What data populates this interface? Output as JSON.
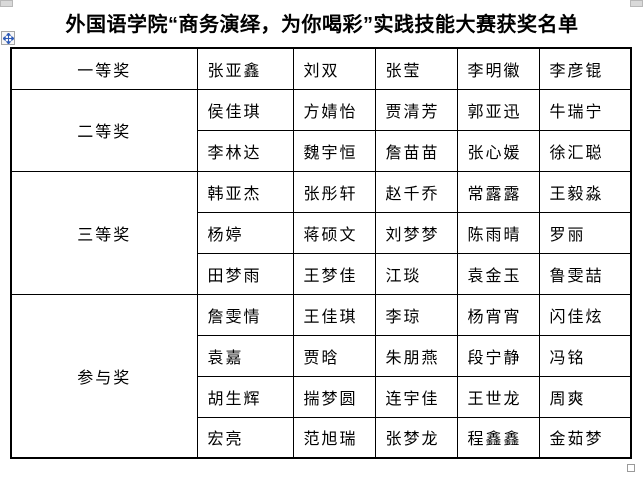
{
  "page": {
    "title": "外国语学院“商务演绎，为你喝彩”实践技能大赛获奖名单"
  },
  "table": {
    "groups": [
      {
        "award": "一等奖",
        "rows": [
          [
            "张亚鑫",
            "刘双",
            "张莹",
            "李明徽",
            "李彦锟"
          ]
        ]
      },
      {
        "award": "二等奖",
        "rows": [
          [
            "侯佳琪",
            "方婧怡",
            "贾清芳",
            "郭亚迅",
            "牛瑞宁"
          ],
          [
            "李林达",
            "魏宇恒",
            "詹苗苗",
            "张心媛",
            "徐汇聪"
          ]
        ]
      },
      {
        "award": "三等奖",
        "rows": [
          [
            "韩亚杰",
            "张彤轩",
            "赵千乔",
            "常露露",
            "王毅淼"
          ],
          [
            "杨婷",
            "蒋硕文",
            "刘梦梦",
            "陈雨晴",
            "罗丽"
          ],
          [
            "田梦雨",
            "王梦佳",
            "江琰",
            "袁金玉",
            "鲁雯喆"
          ]
        ]
      },
      {
        "award": "参与奖",
        "rows": [
          [
            "詹雯情",
            "王佳琪",
            "李琼",
            "杨宵宵",
            "闪佳炫"
          ],
          [
            "袁嘉",
            "贾晗",
            "朱朋燕",
            "段宁静",
            "冯铭"
          ],
          [
            "胡生辉",
            "揣梦圆",
            "连宇佳",
            "王世龙",
            "周爽"
          ],
          [
            "宏亮",
            "范旭瑞",
            "张梦龙",
            "程鑫鑫",
            "金茹梦"
          ]
        ]
      }
    ]
  },
  "icons": {
    "move_handle": "table-move-handle",
    "resize_handle": "table-resize-handle"
  },
  "colors": {
    "text": "#000000",
    "table_border": "#000000",
    "handle_cross": "#2f5bb7",
    "handle_border": "#a6a6a6"
  }
}
